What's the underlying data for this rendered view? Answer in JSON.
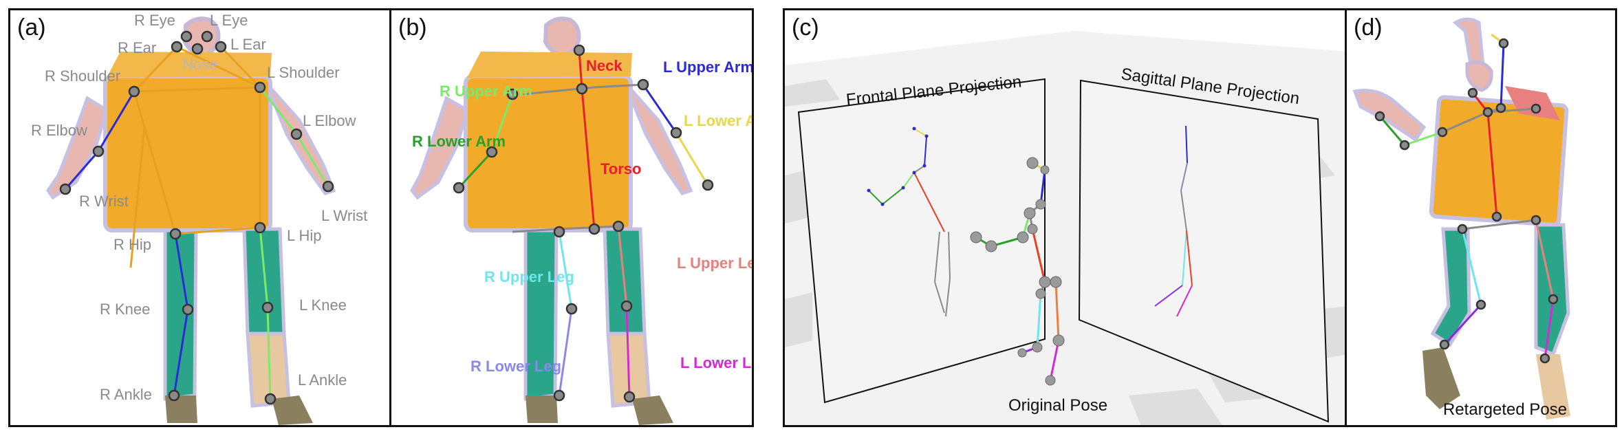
{
  "panels": {
    "a": {
      "label": "(a)",
      "keypoints": {
        "r_eye": "R Eye",
        "l_eye": "L Eye",
        "r_ear": "R Ear",
        "l_ear": "L Ear",
        "nose": "Nose",
        "r_shoulder": "R Shoulder",
        "l_shoulder": "L Shoulder",
        "r_elbow": "R Elbow",
        "l_elbow": "L Elbow",
        "r_wrist": "R Wrist",
        "l_wrist": "L Wrist",
        "r_hip": "R Hip",
        "l_hip": "L Hip",
        "r_knee": "R Knee",
        "l_knee": "L Knee",
        "r_ankle": "R Ankle",
        "l_ankle": "L Ankle"
      }
    },
    "b": {
      "label": "(b)",
      "bones": {
        "neck": "Neck",
        "torso": "Torso",
        "r_upper_arm": "R Upper Arm",
        "l_upper_arm": "L Upper Arm",
        "r_lower_arm": "R Lower Arm",
        "l_lower_arm": "L Lower Arm",
        "r_upper_leg": "R Upper Leg",
        "l_upper_leg": "L Upper Leg",
        "r_lower_leg": "R Lower Leg",
        "l_lower_leg": "L Lower Leg"
      }
    },
    "c": {
      "label": "(c)",
      "frontal_title": "Frontal Plane Projection",
      "sagittal_title": "Sagittal Plane Projection",
      "caption": "Original Pose"
    },
    "d": {
      "label": "(d)",
      "caption": "Retargeted Pose"
    }
  },
  "colors": {
    "neck": "#e8202a",
    "torso": "#e8202a",
    "r_upper_arm": "#7ee86a",
    "r_lower_arm": "#2aa02a",
    "l_upper_arm": "#2b2bd6",
    "l_lower_arm": "#e6d84a",
    "r_upper_leg": "#6ee6ee",
    "r_lower_leg": "#8a8ae6",
    "l_upper_leg": "#e88080",
    "l_lower_leg": "#d42ad4",
    "keypoint_label": "#8a8a8a",
    "body_fill": "#f2aa2a",
    "legs_fill": "#2aa58a"
  }
}
